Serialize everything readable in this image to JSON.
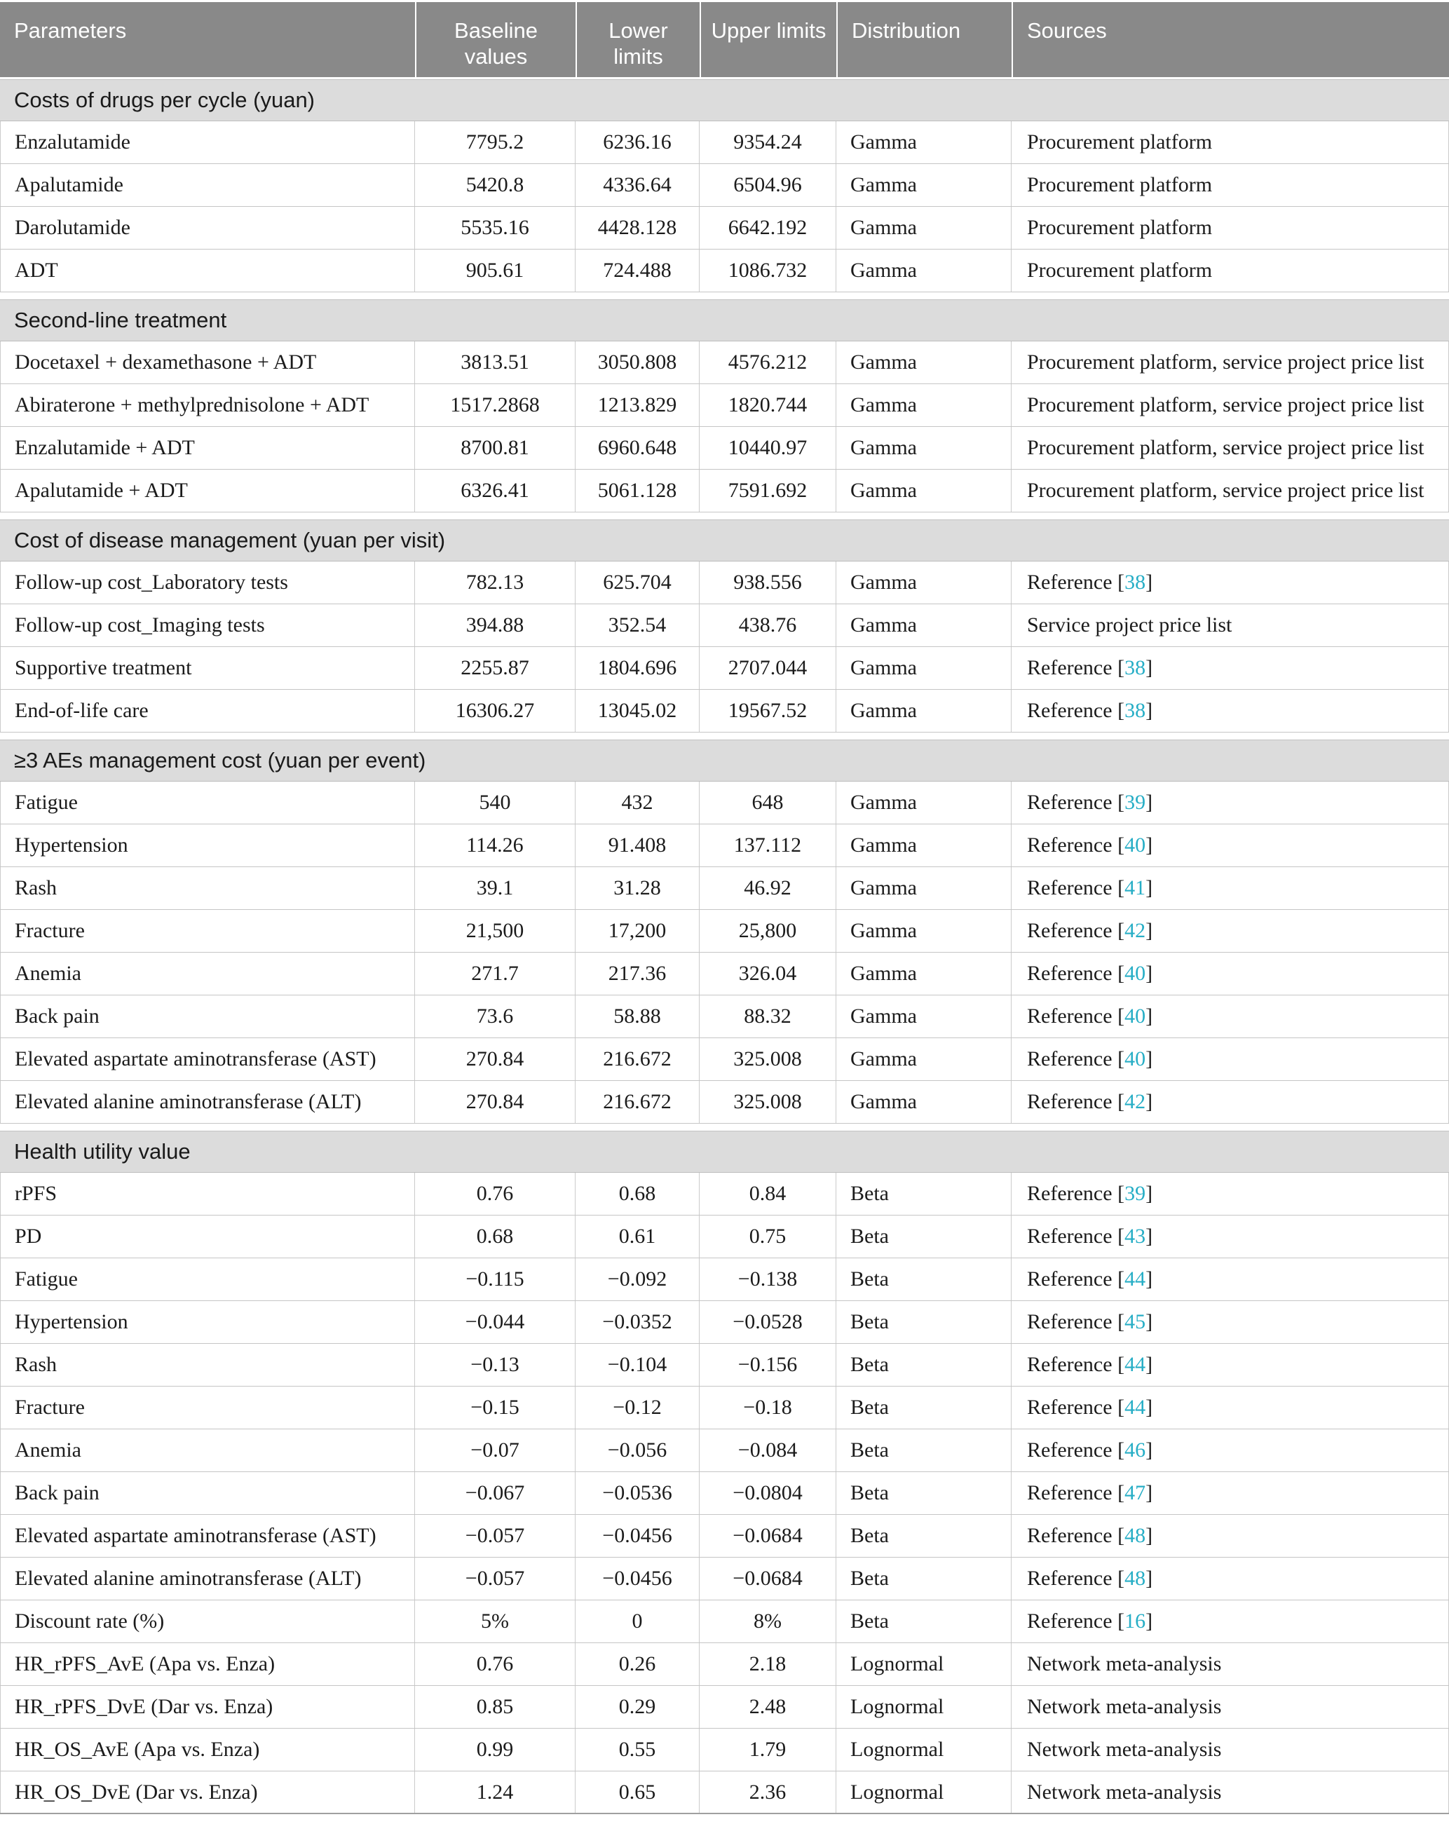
{
  "table": {
    "columns": [
      "Parameters",
      "Baseline values",
      "Lower limits",
      "Upper limits",
      "Distribution",
      "Sources"
    ],
    "colors": {
      "header_bg": "#898989",
      "header_text": "#ffffff",
      "section_bg": "#dcdcdc",
      "citation_teal": "#27aec6",
      "grid_line": "#c5c5c5"
    },
    "sections": [
      {
        "label": "Costs of drugs per cycle (yuan)",
        "rows": [
          {
            "param": "Enzalutamide",
            "baseline": "7795.2",
            "lower": "6236.16",
            "upper": "9354.24",
            "dist": "Gamma",
            "source": {
              "label": "Procurement platform"
            }
          },
          {
            "param": "Apalutamide",
            "baseline": "5420.8",
            "lower": "4336.64",
            "upper": "6504.96",
            "dist": "Gamma",
            "source": {
              "label": "Procurement platform"
            }
          },
          {
            "param": "Darolutamide",
            "baseline": "5535.16",
            "lower": "4428.128",
            "upper": "6642.192",
            "dist": "Gamma",
            "source": {
              "label": "Procurement platform"
            }
          },
          {
            "param": "ADT",
            "baseline": "905.61",
            "lower": "724.488",
            "upper": "1086.732",
            "dist": "Gamma",
            "source": {
              "label": "Procurement platform"
            }
          }
        ]
      },
      {
        "label": "Second-line treatment",
        "rows": [
          {
            "param": "Docetaxel + dexamethasone + ADT",
            "baseline": "3813.51",
            "lower": "3050.808",
            "upper": "4576.212",
            "dist": "Gamma",
            "source": {
              "label": "Procurement platform, service project price list"
            }
          },
          {
            "param": "Abiraterone + methylprednisolone + ADT",
            "baseline": "1517.2868",
            "lower": "1213.829",
            "upper": "1820.744",
            "dist": "Gamma",
            "source": {
              "label": "Procurement platform, service project price list"
            }
          },
          {
            "param": "Enzalutamide + ADT",
            "baseline": "8700.81",
            "lower": "6960.648",
            "upper": "10440.97",
            "dist": "Gamma",
            "source": {
              "label": "Procurement platform, service project price list"
            }
          },
          {
            "param": "Apalutamide + ADT",
            "baseline": "6326.41",
            "lower": "5061.128",
            "upper": "7591.692",
            "dist": "Gamma",
            "source": {
              "label": "Procurement platform, service project price list"
            }
          }
        ]
      },
      {
        "label": "Cost of disease management (yuan per visit)",
        "rows": [
          {
            "param": "Follow-up cost_Laboratory tests",
            "baseline": "782.13",
            "lower": "625.704",
            "upper": "938.556",
            "dist": "Gamma",
            "source": {
              "label": "Reference",
              "ref": "38"
            }
          },
          {
            "param": "Follow-up cost_Imaging tests",
            "baseline": "394.88",
            "lower": "352.54",
            "upper": "438.76",
            "dist": "Gamma",
            "source": {
              "label": "Service project price list"
            }
          },
          {
            "param": "Supportive treatment",
            "baseline": "2255.87",
            "lower": "1804.696",
            "upper": "2707.044",
            "dist": "Gamma",
            "source": {
              "label": "Reference",
              "ref": "38"
            }
          },
          {
            "param": "End-of-life care",
            "baseline": "16306.27",
            "lower": "13045.02",
            "upper": "19567.52",
            "dist": "Gamma",
            "source": {
              "label": "Reference",
              "ref": "38"
            }
          }
        ]
      },
      {
        "label": "≥3 AEs management cost (yuan per event)",
        "rows": [
          {
            "param": "Fatigue",
            "baseline": "540",
            "lower": "432",
            "upper": "648",
            "dist": "Gamma",
            "source": {
              "label": "Reference",
              "ref": "39"
            }
          },
          {
            "param": "Hypertension",
            "baseline": "114.26",
            "lower": "91.408",
            "upper": "137.112",
            "dist": "Gamma",
            "source": {
              "label": "Reference",
              "ref": "40"
            }
          },
          {
            "param": "Rash",
            "baseline": "39.1",
            "lower": "31.28",
            "upper": "46.92",
            "dist": "Gamma",
            "source": {
              "label": "Reference",
              "ref": "41"
            }
          },
          {
            "param": "Fracture",
            "baseline": "21,500",
            "lower": "17,200",
            "upper": "25,800",
            "dist": "Gamma",
            "source": {
              "label": "Reference",
              "ref": "42"
            }
          },
          {
            "param": "Anemia",
            "baseline": "271.7",
            "lower": "217.36",
            "upper": "326.04",
            "dist": "Gamma",
            "source": {
              "label": "Reference",
              "ref": "40"
            }
          },
          {
            "param": "Back pain",
            "baseline": "73.6",
            "lower": "58.88",
            "upper": "88.32",
            "dist": "Gamma",
            "source": {
              "label": "Reference",
              "ref": "40"
            }
          },
          {
            "param": "Elevated aspartate aminotransferase (AST)",
            "baseline": "270.84",
            "lower": "216.672",
            "upper": "325.008",
            "dist": "Gamma",
            "source": {
              "label": "Reference",
              "ref": "40"
            }
          },
          {
            "param": "Elevated alanine aminotransferase (ALT)",
            "baseline": "270.84",
            "lower": "216.672",
            "upper": "325.008",
            "dist": "Gamma",
            "source": {
              "label": "Reference",
              "ref": "42"
            }
          }
        ]
      },
      {
        "label": "Health utility value",
        "rows": [
          {
            "param": "rPFS",
            "baseline": "0.76",
            "lower": "0.68",
            "upper": "0.84",
            "dist": "Beta",
            "source": {
              "label": "Reference",
              "ref": "39"
            }
          },
          {
            "param": "PD",
            "baseline": "0.68",
            "lower": "0.61",
            "upper": "0.75",
            "dist": "Beta",
            "source": {
              "label": "Reference",
              "ref": "43"
            }
          },
          {
            "param": "Fatigue",
            "baseline": "−0.115",
            "lower": "−0.092",
            "upper": "−0.138",
            "dist": "Beta",
            "source": {
              "label": "Reference",
              "ref": "44"
            }
          },
          {
            "param": "Hypertension",
            "baseline": "−0.044",
            "lower": "−0.0352",
            "upper": "−0.0528",
            "dist": "Beta",
            "source": {
              "label": "Reference",
              "ref": "45"
            }
          },
          {
            "param": "Rash",
            "baseline": "−0.13",
            "lower": "−0.104",
            "upper": "−0.156",
            "dist": "Beta",
            "source": {
              "label": "Reference",
              "ref": "44"
            }
          },
          {
            "param": "Fracture",
            "baseline": "−0.15",
            "lower": "−0.12",
            "upper": "−0.18",
            "dist": "Beta",
            "source": {
              "label": "Reference",
              "ref": "44"
            }
          },
          {
            "param": "Anemia",
            "baseline": "−0.07",
            "lower": "−0.056",
            "upper": "−0.084",
            "dist": "Beta",
            "source": {
              "label": "Reference",
              "ref": "46"
            }
          },
          {
            "param": "Back pain",
            "baseline": "−0.067",
            "lower": "−0.0536",
            "upper": "−0.0804",
            "dist": "Beta",
            "source": {
              "label": "Reference",
              "ref": "47"
            }
          },
          {
            "param": "Elevated aspartate aminotransferase (AST)",
            "baseline": "−0.057",
            "lower": "−0.0456",
            "upper": "−0.0684",
            "dist": "Beta",
            "source": {
              "label": "Reference",
              "ref": "48"
            }
          },
          {
            "param": "Elevated alanine aminotransferase (ALT)",
            "baseline": "−0.057",
            "lower": "−0.0456",
            "upper": "−0.0684",
            "dist": "Beta",
            "source": {
              "label": "Reference",
              "ref": "48"
            }
          },
          {
            "param": "Discount rate (%)",
            "baseline": "5%",
            "lower": "0",
            "upper": "8%",
            "dist": "Beta",
            "source": {
              "label": "Reference",
              "ref": "16"
            }
          },
          {
            "param": "HR_rPFS_AvE (Apa vs. Enza)",
            "baseline": "0.76",
            "lower": "0.26",
            "upper": "2.18",
            "dist": "Lognormal",
            "source": {
              "label": "Network meta-analysis"
            }
          },
          {
            "param": "HR_rPFS_DvE (Dar vs. Enza)",
            "baseline": "0.85",
            "lower": "0.29",
            "upper": "2.48",
            "dist": "Lognormal",
            "source": {
              "label": "Network meta-analysis"
            }
          },
          {
            "param": "HR_OS_AvE (Apa vs. Enza)",
            "baseline": "0.99",
            "lower": "0.55",
            "upper": "1.79",
            "dist": "Lognormal",
            "source": {
              "label": "Network meta-analysis"
            }
          },
          {
            "param": "HR_OS_DvE (Dar vs. Enza)",
            "baseline": "1.24",
            "lower": "0.65",
            "upper": "2.36",
            "dist": "Lognormal",
            "source": {
              "label": "Network meta-analysis"
            }
          }
        ]
      }
    ]
  }
}
